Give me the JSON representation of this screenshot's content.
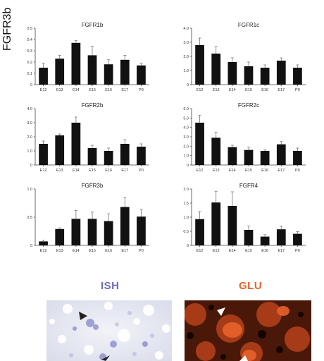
{
  "chart_data": [
    {
      "type": "bar",
      "title": "FGFR1b",
      "categories": [
        "E12",
        "E13",
        "E14",
        "E15",
        "E16",
        "E17",
        "P0"
      ],
      "values": [
        0.15,
        0.23,
        0.37,
        0.26,
        0.18,
        0.22,
        0.17
      ],
      "errors": [
        0.04,
        0.03,
        0.02,
        0.08,
        0.04,
        0.04,
        0.02
      ],
      "yticks": [
        "0",
        "0.1",
        "0.2",
        "0.3",
        "0.4",
        "0.5"
      ],
      "ylim": [
        0,
        0.5
      ]
    },
    {
      "type": "bar",
      "title": "FGFR1c",
      "categories": [
        "E12",
        "E13",
        "E14",
        "E15",
        "E16",
        "E17",
        "P0"
      ],
      "values": [
        2.8,
        2.2,
        1.6,
        1.3,
        1.2,
        1.7,
        1.2
      ],
      "errors": [
        0.5,
        0.5,
        0.3,
        0.3,
        0.2,
        0.2,
        0.2
      ],
      "yticks": [
        "0",
        "1.0",
        "2.0",
        "3.0",
        "4.0"
      ],
      "ylim": [
        0,
        4.0
      ]
    },
    {
      "type": "bar",
      "title": "FGFR2b",
      "categories": [
        "E12",
        "E13",
        "E14",
        "E15",
        "E16",
        "E17",
        "P0"
      ],
      "values": [
        1.5,
        2.1,
        3.0,
        1.2,
        1.0,
        1.5,
        1.3
      ],
      "errors": [
        0.2,
        0.1,
        0.4,
        0.2,
        0.2,
        0.3,
        0.2
      ],
      "yticks": [
        "0",
        "1.0",
        "2.0",
        "3.0",
        "4.0"
      ],
      "ylim": [
        0,
        4.0
      ]
    },
    {
      "type": "bar",
      "title": "FGFR2c",
      "categories": [
        "E12",
        "E13",
        "E14",
        "E15",
        "E16",
        "E17",
        "P0"
      ],
      "values": [
        4.5,
        2.9,
        1.9,
        1.6,
        1.5,
        2.2,
        1.5
      ],
      "errors": [
        0.8,
        0.6,
        0.2,
        0.3,
        0.1,
        0.3,
        0.3
      ],
      "yticks": [
        "0",
        "1.0",
        "2.0",
        "3.0",
        "4.0",
        "5.0",
        "6.0"
      ],
      "ylim": [
        0,
        6.0
      ]
    },
    {
      "type": "bar",
      "title": "FGFR3b",
      "categories": [
        "E12",
        "E13",
        "E14",
        "E15",
        "E16",
        "E17",
        "P0"
      ],
      "values": [
        0.07,
        0.29,
        0.47,
        0.47,
        0.43,
        0.68,
        0.51
      ],
      "errors": [
        0.02,
        0.02,
        0.15,
        0.12,
        0.13,
        0.17,
        0.13
      ],
      "yticks": [
        "0",
        "0.5",
        "1.0"
      ],
      "ylim": [
        0,
        1.0
      ]
    },
    {
      "type": "bar",
      "title": "FGFR4",
      "categories": [
        "E12",
        "E13",
        "E14",
        "E15",
        "E16",
        "E17",
        "P0"
      ],
      "values": [
        0.93,
        1.52,
        1.4,
        0.55,
        0.31,
        0.57,
        0.41
      ],
      "errors": [
        0.27,
        0.4,
        0.5,
        0.14,
        0.07,
        0.12,
        0.08
      ],
      "yticks": [
        "0",
        "0.5",
        "1.0",
        "1.5",
        "2.0"
      ],
      "ylim": [
        0,
        2.0
      ]
    }
  ],
  "labels": {
    "ish": "ISH",
    "glu": "GLU",
    "row": "FGFR3b"
  },
  "colors": {
    "ish": "#6c6cc0",
    "glu": "#e8622a",
    "bars": "#111111"
  }
}
